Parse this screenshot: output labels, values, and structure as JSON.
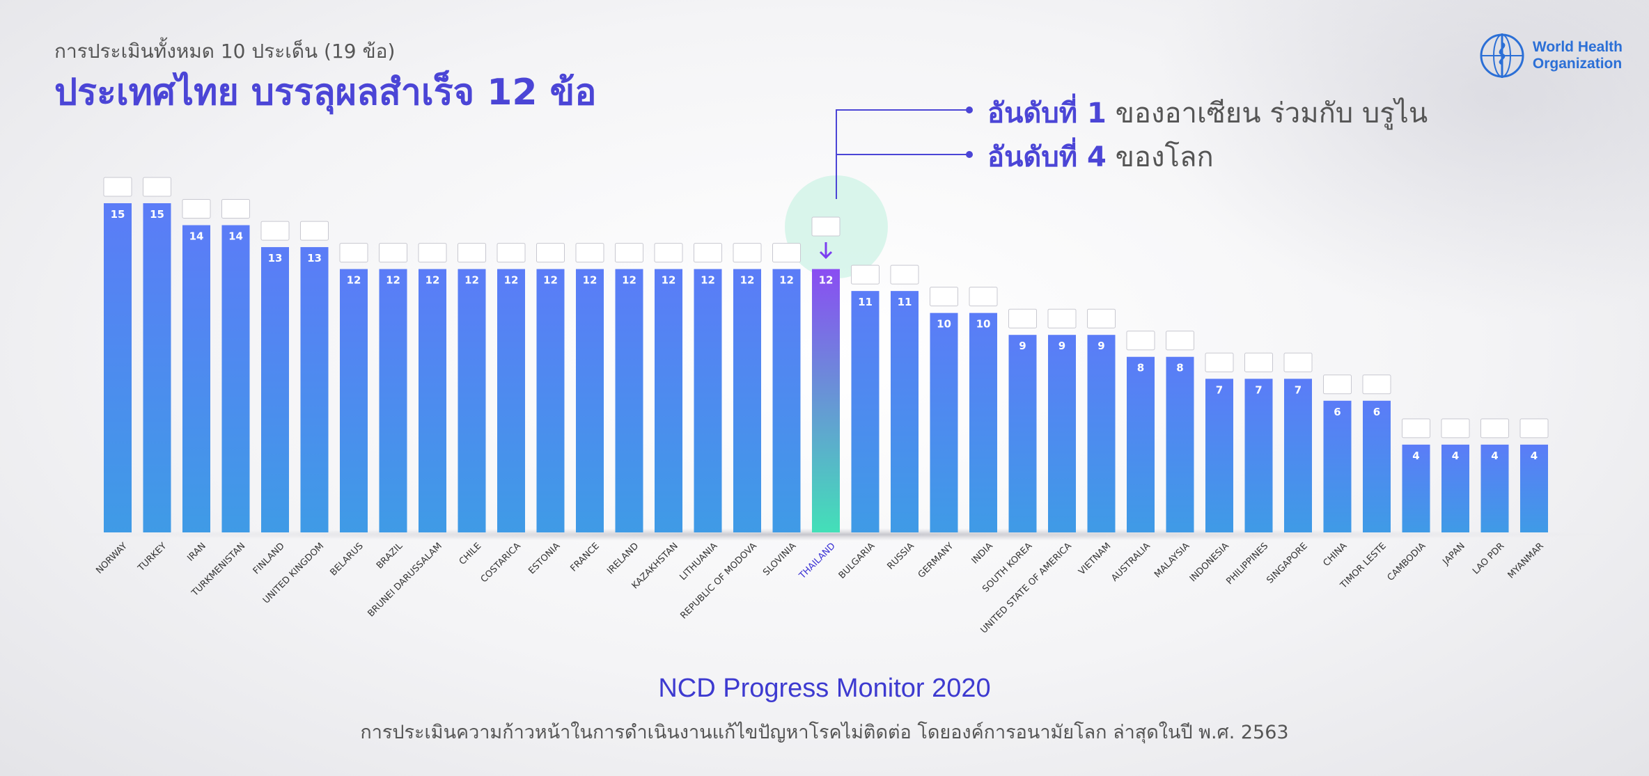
{
  "header": {
    "subtitle": "การประเมินทั้งหมด 10 ประเด็น (19 ข้อ)",
    "title": "ประเทศไทย บรรลุผลสำเร็จ 12 ข้อ"
  },
  "logo": {
    "line1": "World Health",
    "line2": "Organization"
  },
  "callouts": [
    {
      "emph": "อันดับที่ 1",
      "rest": " ของอาเซียน ร่วมกับ บรูไน"
    },
    {
      "emph": "อันดับที่ 4",
      "rest": " ของโลก"
    }
  ],
  "footer": {
    "title": "NCD Progress Monitor 2020",
    "subtitle": "การประเมินความก้าวหน้าในการดำเนินงานแก้ไขปัญหาโรคไม่ติดต่อ โดยองค์การอนามัยโลก ล่าสุดในปี พ.ศ. 2563"
  },
  "colors": {
    "bar_top": "#5b7cf7",
    "bar_bottom": "#3f9be6",
    "highlight_top": "#8a4df2",
    "highlight_bottom": "#43e0b8",
    "accent": "#4b45d6"
  },
  "chart_data": {
    "type": "bar",
    "highlight": "THAILAND",
    "ylim": [
      0,
      19
    ],
    "categories": [
      "NORWAY",
      "TURKEY",
      "IRAN",
      "TURKMENISTAN",
      "FINLAND",
      "UNITED KINGDOM",
      "BELARUS",
      "BRAZIL",
      "BRUNEI DARUSSALAM",
      "CHILE",
      "COSTARICA",
      "ESTONIA",
      "FRANCE",
      "IRELAND",
      "KAZAKHSTAN",
      "LITHUANIA",
      "REPUBLIC OF MODOVA",
      "SLOVINIA",
      "THAILAND",
      "BULGARIA",
      "RUSSIA",
      "GERMANY",
      "INDIA",
      "SOUTH KOREA",
      "UNITED STATE OF AMERICA",
      "VIETNAM",
      "AUSTRALIA",
      "MALAYSIA",
      "INDONESIA",
      "PHILIPPINES",
      "SINGAPORE",
      "CHINA",
      "TIMOR LESTE",
      "CAMBODIA",
      "JAPAN",
      "LAO PDR",
      "MYANMAR"
    ],
    "values": [
      15,
      15,
      14,
      14,
      13,
      13,
      12,
      12,
      12,
      12,
      12,
      12,
      12,
      12,
      12,
      12,
      12,
      12,
      12,
      11,
      11,
      10,
      10,
      9,
      9,
      9,
      8,
      8,
      7,
      7,
      7,
      6,
      6,
      4,
      4,
      4,
      4
    ]
  }
}
